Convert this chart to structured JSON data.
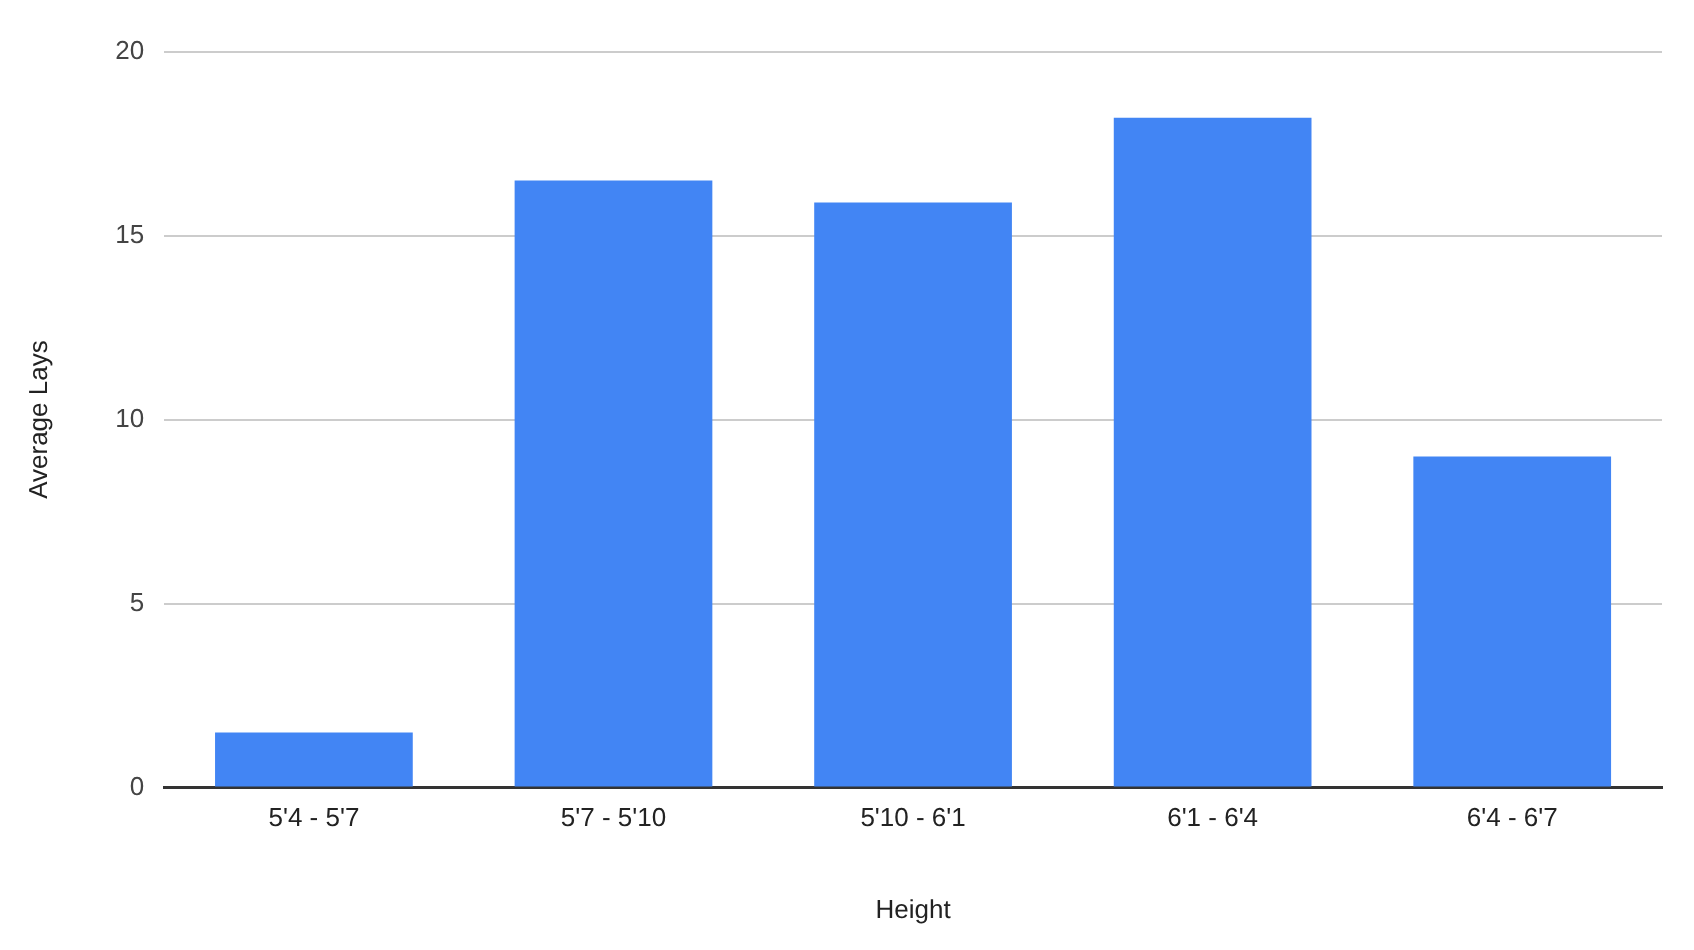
{
  "chart_data": {
    "type": "bar",
    "xlabel": "Height",
    "ylabel": "Average Lays",
    "categories": [
      "5'4 - 5'7",
      "5'7 - 5'10",
      "5'10 - 6'1",
      "6'1 - 6'4",
      "6'4 - 6'7"
    ],
    "values": [
      1.5,
      16.5,
      15.9,
      18.2,
      9
    ],
    "color": "#4285f4",
    "ylim": [
      0,
      20
    ],
    "yticks": [
      0,
      5,
      10,
      15,
      20
    ],
    "grid": "y"
  }
}
